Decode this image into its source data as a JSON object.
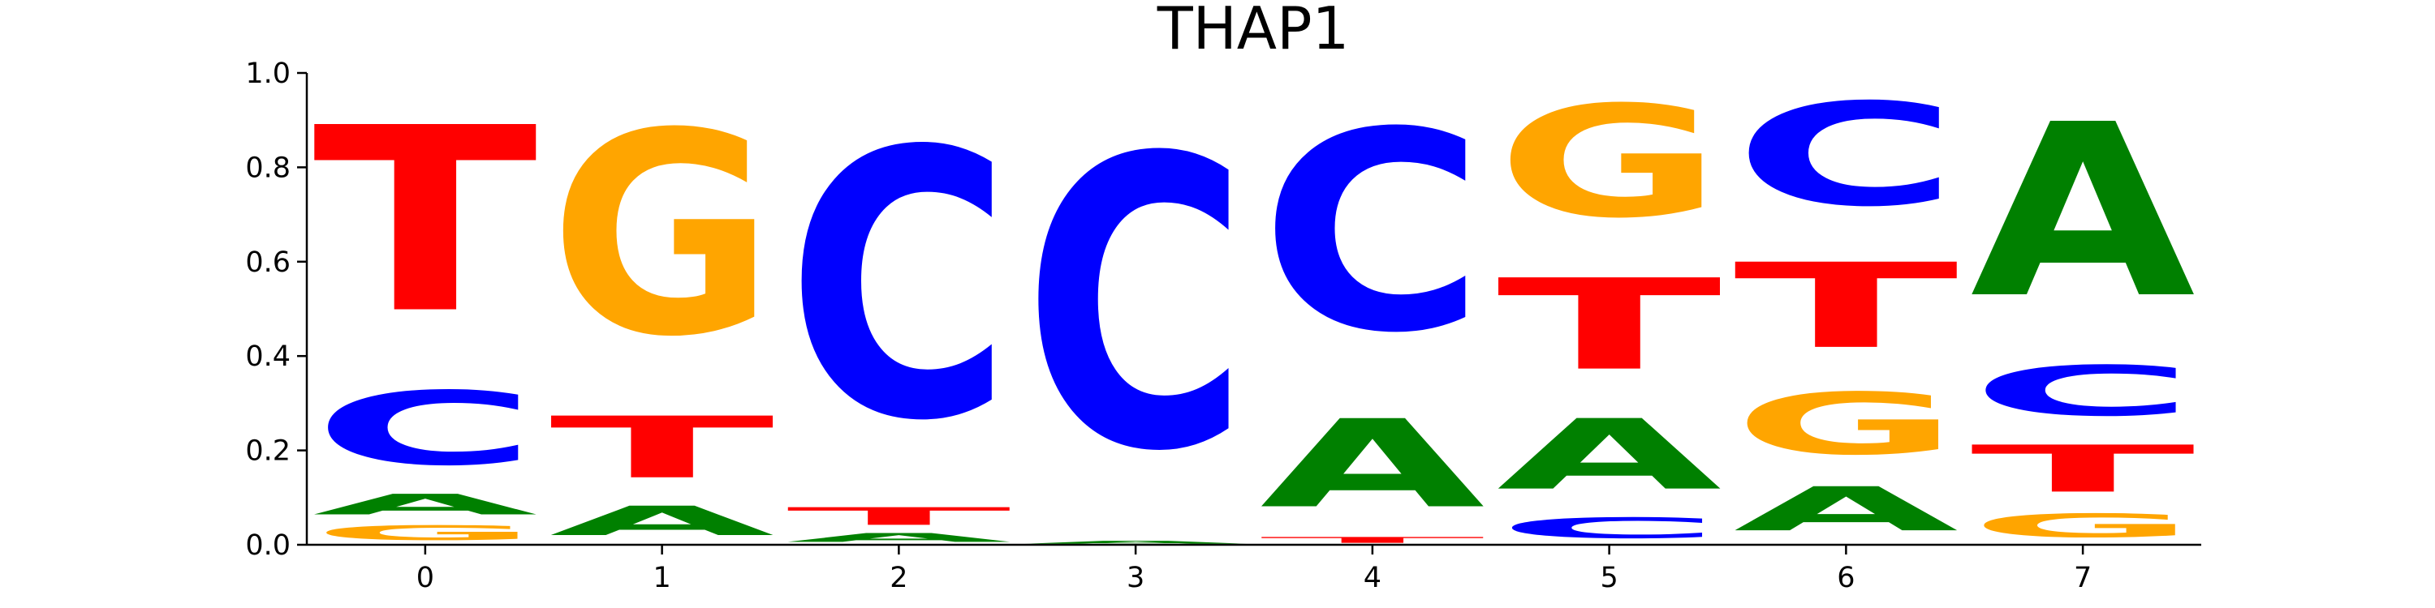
{
  "chart_data": {
    "type": "sequence-logo",
    "title": "THAP1",
    "xlabel": "",
    "ylabel": "",
    "ylim": [
      0,
      1.0
    ],
    "grid": false,
    "x_ticks": [
      "0",
      "1",
      "2",
      "3",
      "4",
      "5",
      "6",
      "7"
    ],
    "y_ticks": [
      "0.0",
      "0.2",
      "0.4",
      "0.6",
      "0.8",
      "1.0"
    ],
    "colors": {
      "A": "#008000",
      "C": "#0000ff",
      "G": "#ffa500",
      "T": "#ff0000"
    },
    "positions": [
      {
        "position": 0,
        "letters": [
          {
            "base": "G",
            "value": 0.05
          },
          {
            "base": "A",
            "value": 0.07
          },
          {
            "base": "C",
            "value": 0.25
          },
          {
            "base": "T",
            "value": 0.63
          }
        ]
      },
      {
        "position": 1,
        "letters": [
          {
            "base": "A",
            "value": 0.1
          },
          {
            "base": "T",
            "value": 0.21
          },
          {
            "base": "G",
            "value": 0.69
          }
        ]
      },
      {
        "position": 2,
        "letters": [
          {
            "base": "A",
            "value": 0.03
          },
          {
            "base": "T",
            "value": 0.06
          },
          {
            "base": "C",
            "value": 0.91
          }
        ]
      },
      {
        "position": 3,
        "letters": [
          {
            "base": "A",
            "value": 0.01
          },
          {
            "base": "C",
            "value": 0.99
          }
        ]
      },
      {
        "position": 4,
        "letters": [
          {
            "base": "T",
            "value": 0.02
          },
          {
            "base": "A",
            "value": 0.3
          },
          {
            "base": "C",
            "value": 0.68
          }
        ]
      },
      {
        "position": 5,
        "letters": [
          {
            "base": "C",
            "value": 0.07
          },
          {
            "base": "A",
            "value": 0.24
          },
          {
            "base": "T",
            "value": 0.31
          },
          {
            "base": "G",
            "value": 0.38
          }
        ]
      },
      {
        "position": 6,
        "letters": [
          {
            "base": "A",
            "value": 0.15
          },
          {
            "base": "G",
            "value": 0.21
          },
          {
            "base": "T",
            "value": 0.29
          },
          {
            "base": "C",
            "value": 0.35
          }
        ]
      },
      {
        "position": 7,
        "letters": [
          {
            "base": "G",
            "value": 0.08
          },
          {
            "base": "T",
            "value": 0.16
          },
          {
            "base": "C",
            "value": 0.17
          },
          {
            "base": "A",
            "value": 0.59
          }
        ]
      }
    ]
  }
}
